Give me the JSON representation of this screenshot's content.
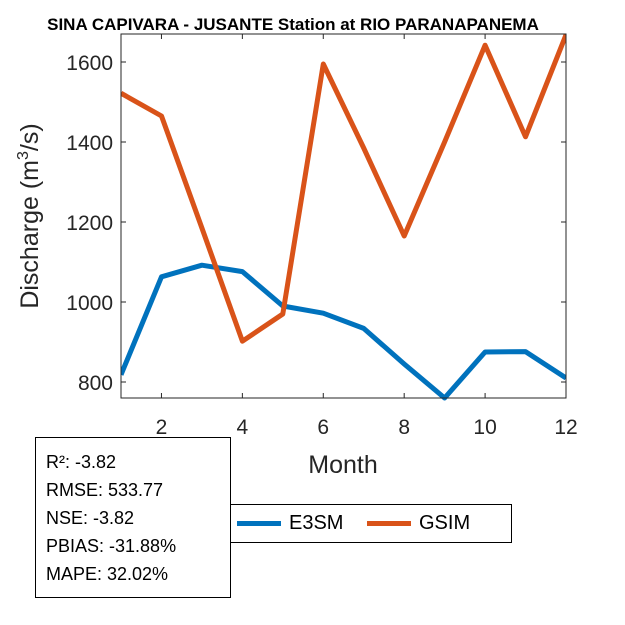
{
  "chart_data": {
    "type": "line",
    "title": "SINA CAPIVARA - JUSANTE  Station at  RIO PARANAPANEMA",
    "xlabel": "Month",
    "ylabel_prefix": "Discharge (m",
    "ylabel_sup": "3",
    "ylabel_suffix": "/s)",
    "xlim": [
      1,
      12
    ],
    "ylim": [
      760,
      1670
    ],
    "xticks": [
      2,
      4,
      6,
      8,
      10,
      12
    ],
    "yticks": [
      800,
      1000,
      1200,
      1400,
      1600
    ],
    "x": [
      1,
      2,
      3,
      4,
      5,
      6,
      7,
      8,
      9,
      10,
      11,
      12
    ],
    "series": [
      {
        "name": "E3SM",
        "color": "#0072BD",
        "values": [
          818,
          1063,
          1092,
          1076,
          990,
          972,
          934,
          845,
          760,
          875,
          876,
          810
        ]
      },
      {
        "name": "GSIM",
        "color": "#D95319",
        "values": [
          1522,
          1465,
          1185,
          902,
          970,
          1595,
          1385,
          1165,
          1400,
          1642,
          1413,
          1668
        ]
      }
    ],
    "legend_position": "bottom"
  },
  "stats": [
    "R²: -3.82",
    "RMSE: 533.77",
    "NSE: -3.82",
    "PBIAS: -31.88%",
    "MAPE: 32.02%"
  ]
}
